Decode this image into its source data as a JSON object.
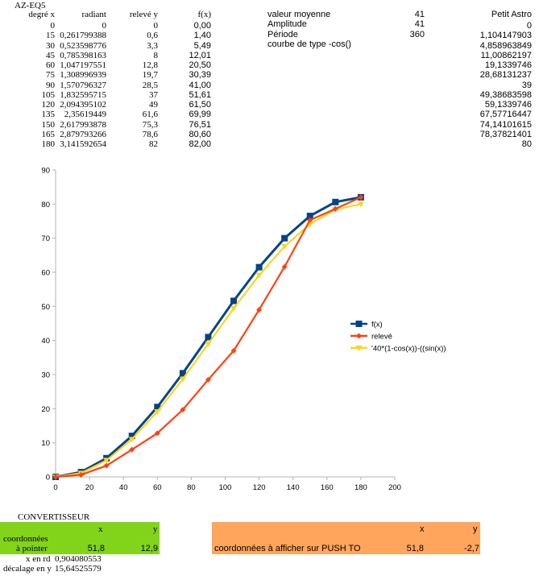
{
  "sheet_title": "AZ-EQ5",
  "headers": {
    "deg": "degré x",
    "rad": "radiant",
    "y": "relevé y",
    "fx": "f(x)"
  },
  "rows": [
    [
      "0",
      "0",
      "0",
      "0,00"
    ],
    [
      "15",
      "0,261799388",
      "0,6",
      "1,40"
    ],
    [
      "30",
      "0,523598776",
      "3,3",
      "5,49"
    ],
    [
      "45",
      "0,785398163",
      "8",
      "12,01"
    ],
    [
      "60",
      "1,047197551",
      "12,8",
      "20,50"
    ],
    [
      "75",
      "1,308996939",
      "19,7",
      "30,39"
    ],
    [
      "90",
      "1,570796327",
      "28,5",
      "41,00"
    ],
    [
      "105",
      "1,832595715",
      "37",
      "51,61"
    ],
    [
      "120",
      "2,094395102",
      "49",
      "61,50"
    ],
    [
      "135",
      "2,35619449",
      "61,6",
      "69,99"
    ],
    [
      "150",
      "2,617993878",
      "75,3",
      "76,51"
    ],
    [
      "165",
      "2,879793266",
      "78,6",
      "80,60"
    ],
    [
      "180",
      "3,141592654",
      "82",
      "82,00"
    ]
  ],
  "params": [
    {
      "label": "valeur moyenne",
      "value": "41"
    },
    {
      "label": "Amplitude",
      "value": "41"
    },
    {
      "label": "Période",
      "value": "360"
    },
    {
      "label": "courbe de type -cos()",
      "value": ""
    }
  ],
  "petit_astro": {
    "header": "Petit Astro",
    "values": [
      "0",
      "1,104147903",
      "4,858963849",
      "11,00862197",
      "19,1339746",
      "28,68131237",
      "39",
      "49,38683598",
      "59,1339746",
      "67,57716447",
      "74,14101615",
      "78,37821401",
      "80"
    ]
  },
  "chart_data": {
    "type": "line",
    "x": [
      0,
      15,
      30,
      45,
      60,
      75,
      90,
      105,
      120,
      135,
      150,
      165,
      180
    ],
    "series": [
      {
        "name": "f(x)",
        "color": "#004586",
        "marker": "square",
        "values": [
          0,
          1.4,
          5.49,
          12.01,
          20.5,
          30.39,
          41.0,
          51.61,
          61.5,
          69.99,
          76.51,
          80.6,
          82.0
        ]
      },
      {
        "name": "relevé",
        "color": "#ff420e",
        "marker": "diamond",
        "values": [
          0,
          0.6,
          3.3,
          8,
          12.8,
          19.7,
          28.5,
          37,
          49,
          61.6,
          75.3,
          78.6,
          82
        ]
      },
      {
        "name": "'40*(1-cos(x))-((sin(x))",
        "color": "#ffd320",
        "marker": "triangle",
        "values": [
          0,
          1.104147903,
          4.858963849,
          11.00862197,
          19.1339746,
          28.68131237,
          39,
          49.38683598,
          59.1339746,
          67.57716447,
          74.14101615,
          78.37821401,
          80
        ]
      }
    ],
    "xlim": [
      0,
      200
    ],
    "ylim": [
      0,
      90
    ],
    "xticks": [
      "0",
      "20",
      "40",
      "60",
      "80",
      "100",
      "120",
      "140",
      "160",
      "180",
      "200"
    ],
    "yticks": [
      "0",
      "10",
      "20",
      "30",
      "40",
      "50",
      "60",
      "70",
      "80",
      "90"
    ],
    "grid": false,
    "legend": "right"
  },
  "converter": {
    "title": "CONVERTISSEUR",
    "col_x": "x",
    "col_y": "y",
    "label1": "coordonnées",
    "label2": "à pointer",
    "x_val": "51,8",
    "y_val": "12,9",
    "xrd_label": "x en rd",
    "xrd_val": "0,904080553",
    "dec_label": "décalage en y",
    "dec_val": "15,64525579"
  },
  "push_to": {
    "col_x": "x",
    "col_y": "y",
    "label": "coordonnées à afficher sur PUSH TO",
    "x_val": "51,8",
    "y_val": "-2,7"
  }
}
